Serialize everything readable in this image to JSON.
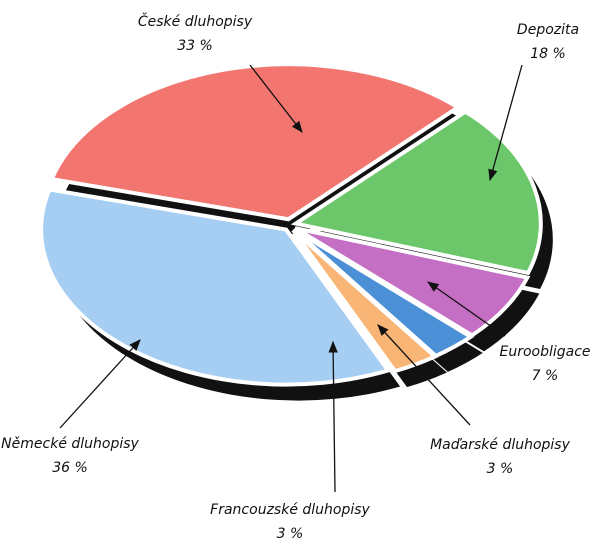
{
  "chart_data": {
    "type": "pie",
    "categories": [
      "České dluhopisy",
      "Depozita",
      "Euroobligace",
      "Maďarské dluhopisy",
      "Francouzské dluhopisy",
      "Německé dluhopisy"
    ],
    "values": [
      33,
      18,
      7,
      3,
      3,
      36
    ],
    "value_labels": [
      "33 %",
      "18 %",
      "7 %",
      "3 %",
      "3 %",
      "36 %"
    ],
    "colors": [
      "#f27570",
      "#6cc66a",
      "#c46ec4",
      "#4b8fd6",
      "#f9b576",
      "#a6cdf2"
    ]
  }
}
